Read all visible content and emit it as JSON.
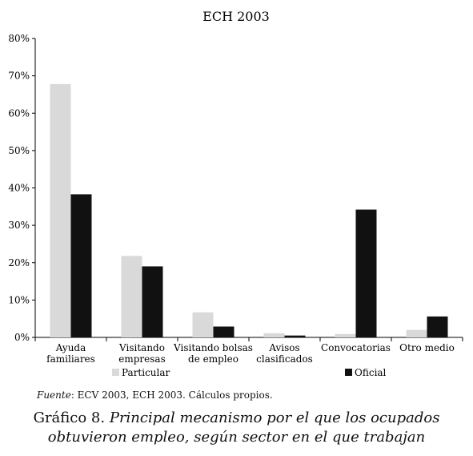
{
  "chart_data": {
    "type": "bar",
    "title": "ECH 2003",
    "categories": [
      [
        "Ayuda",
        "familiares"
      ],
      [
        "Visitando",
        "empresas"
      ],
      [
        "Visitando bolsas",
        "de empleo"
      ],
      [
        "Avisos",
        "clasificados"
      ],
      [
        "Convocatorias"
      ],
      [
        "Otro medio"
      ]
    ],
    "series": [
      {
        "name": "Particular",
        "color": "#d9d9d9",
        "values": [
          67.8,
          21.8,
          6.7,
          1.1,
          0.9,
          2.0
        ]
      },
      {
        "name": "Oficial",
        "color": "#111111",
        "values": [
          38.3,
          19.0,
          2.9,
          0.5,
          34.2,
          5.6
        ]
      }
    ],
    "ylim": [
      0,
      80
    ],
    "yticks": [
      0,
      10,
      20,
      30,
      40,
      50,
      60,
      70,
      80
    ],
    "ytick_format": "%",
    "xlabel": "",
    "ylabel": "",
    "grid": false,
    "legend_position": "bottom"
  },
  "source": {
    "label": "Fuente",
    "text": ": ECV 2003, ECH 2003. Cálculos propios."
  },
  "caption": {
    "prefix": "Gráfico 8. ",
    "line1_italic": "Principal mecanismo por el que los ocupados",
    "line2_italic": "obtuvieron empleo, según sector en el que trabajan"
  }
}
